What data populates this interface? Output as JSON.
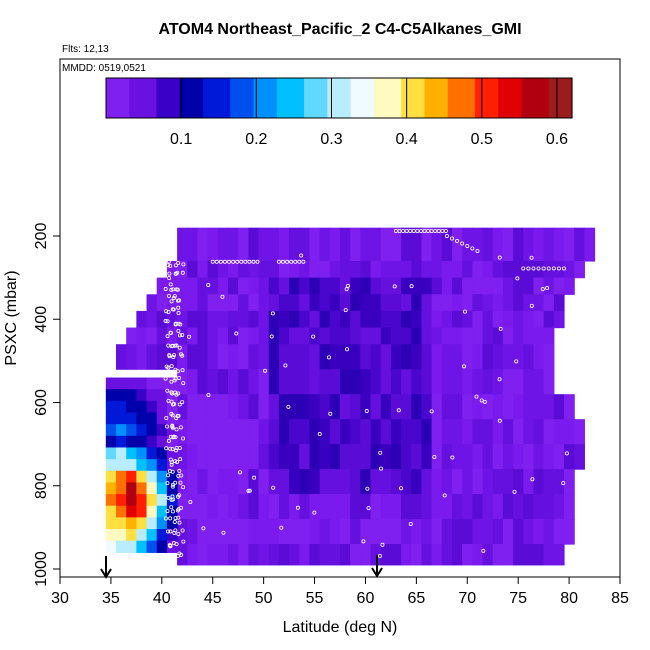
{
  "chart_data": {
    "type": "heatmap",
    "title": "ATOM4 Northeast_Pacific_2 C4-C5Alkanes_GMI",
    "subtitle_flights": "Flts: 12,13",
    "subtitle_dates": "MMDD: 0519,0521",
    "xlabel": "Latitude (deg N)",
    "ylabel": "PSXC (mbar)",
    "xlim": [
      30,
      85
    ],
    "ylim": [
      1000,
      100
    ],
    "x_ticks": [
      "30",
      "35",
      "40",
      "45",
      "50",
      "55",
      "60",
      "65",
      "70",
      "75",
      "80",
      "85"
    ],
    "y_ticks": [
      "200",
      "400",
      "600",
      "800",
      "1000"
    ],
    "colorbar": {
      "min": 0.0,
      "max": 0.62,
      "tick_values": [
        0.1,
        0.2,
        0.3,
        0.4,
        0.5,
        0.6
      ],
      "tick_labels": [
        "0.1",
        "0.2",
        "0.3",
        "0.4",
        "0.5",
        "0.6"
      ],
      "colors": [
        "#7f1ff0",
        "#6a10e0",
        "#3a00c8",
        "#0000aa",
        "#0018d8",
        "#0050f0",
        "#0090ff",
        "#00c0ff",
        "#60d8ff",
        "#b8ecff",
        "#f0fbff",
        "#fffbc0",
        "#ffe040",
        "#ffb000",
        "#ff7000",
        "#ff2000",
        "#e00000",
        "#b00010",
        "#9a1c1c"
      ]
    },
    "columns": [
      {
        "lat_min": 34.5,
        "lat_max": 35.5,
        "p_min": 540,
        "p_max": 960,
        "values": [
          0.04,
          0.12,
          0.14,
          0.16,
          0.18,
          0.12,
          0.28,
          0.3,
          0.42,
          0.43,
          0.46,
          0.42,
          0.4,
          0.38,
          0.34
        ]
      },
      {
        "lat_min": 35.5,
        "lat_max": 36.5,
        "p_min": 540,
        "p_max": 960,
        "values": [
          0.05,
          0.12,
          0.14,
          0.16,
          0.2,
          0.14,
          0.3,
          0.32,
          0.46,
          0.48,
          0.5,
          0.46,
          0.42,
          0.38,
          0.32
        ]
      },
      {
        "lat_min": 36.5,
        "lat_max": 37.5,
        "p_min": 540,
        "p_max": 960,
        "values": [
          0.05,
          0.1,
          0.12,
          0.14,
          0.18,
          0.12,
          0.26,
          0.3,
          0.5,
          0.56,
          0.58,
          0.55,
          0.44,
          0.4,
          0.3
        ]
      },
      {
        "lat_min": 37.5,
        "lat_max": 38.5,
        "p_min": 540,
        "p_max": 960,
        "values": [
          0.04,
          0.08,
          0.1,
          0.12,
          0.16,
          0.1,
          0.22,
          0.26,
          0.4,
          0.48,
          0.5,
          0.5,
          0.4,
          0.32,
          0.24
        ]
      },
      {
        "lat_min": 38.5,
        "lat_max": 39.5,
        "p_min": 540,
        "p_max": 960,
        "values": [
          0.03,
          0.06,
          0.08,
          0.1,
          0.12,
          0.08,
          0.16,
          0.2,
          0.3,
          0.36,
          0.4,
          0.38,
          0.3,
          0.24,
          0.18
        ]
      },
      {
        "lat_min": 39.5,
        "lat_max": 40.5,
        "p_min": 540,
        "p_max": 960,
        "values": [
          0.02,
          0.04,
          0.05,
          0.06,
          0.08,
          0.05,
          0.1,
          0.14,
          0.2,
          0.26,
          0.3,
          0.26,
          0.2,
          0.14,
          0.1
        ]
      },
      {
        "lat_min": 40.5,
        "lat_max": 41.5,
        "p_min": 540,
        "p_max": 960,
        "values": [
          0.01,
          0.02,
          0.03,
          0.03,
          0.04,
          0.03,
          0.05,
          0.06,
          0.1,
          0.12,
          0.14,
          0.12,
          0.1,
          0.08,
          0.06
        ]
      }
    ],
    "background_region": {
      "lat_min": 34.5,
      "lat_max": 82,
      "p_min": 180,
      "p_max": 990,
      "value_range": [
        0.0,
        0.06
      ]
    }
  }
}
